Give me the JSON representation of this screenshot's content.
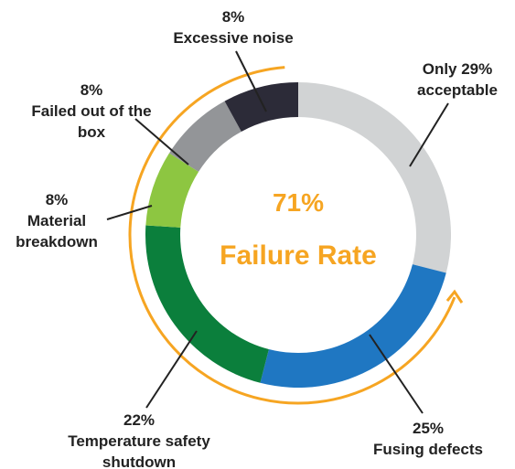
{
  "chart_data": {
    "type": "donut",
    "categories": [
      "acceptable",
      "Fusing defects",
      "Temperature safety shutdown",
      "Material breakdown",
      "Failed out of the box",
      "Excessive noise"
    ],
    "values": [
      29,
      25,
      22,
      8,
      8,
      8
    ],
    "value_labels": [
      "Only 29%",
      "25%",
      "22%",
      "8%",
      "8%",
      "8%"
    ],
    "colors": [
      "#d1d3d4",
      "#1f77c2",
      "#0b7f3c",
      "#8dc641",
      "#939598",
      "#2c2b38"
    ],
    "annotations": [
      "71%",
      "Failure Rate"
    ],
    "annotation_color": "#f6a522"
  }
}
